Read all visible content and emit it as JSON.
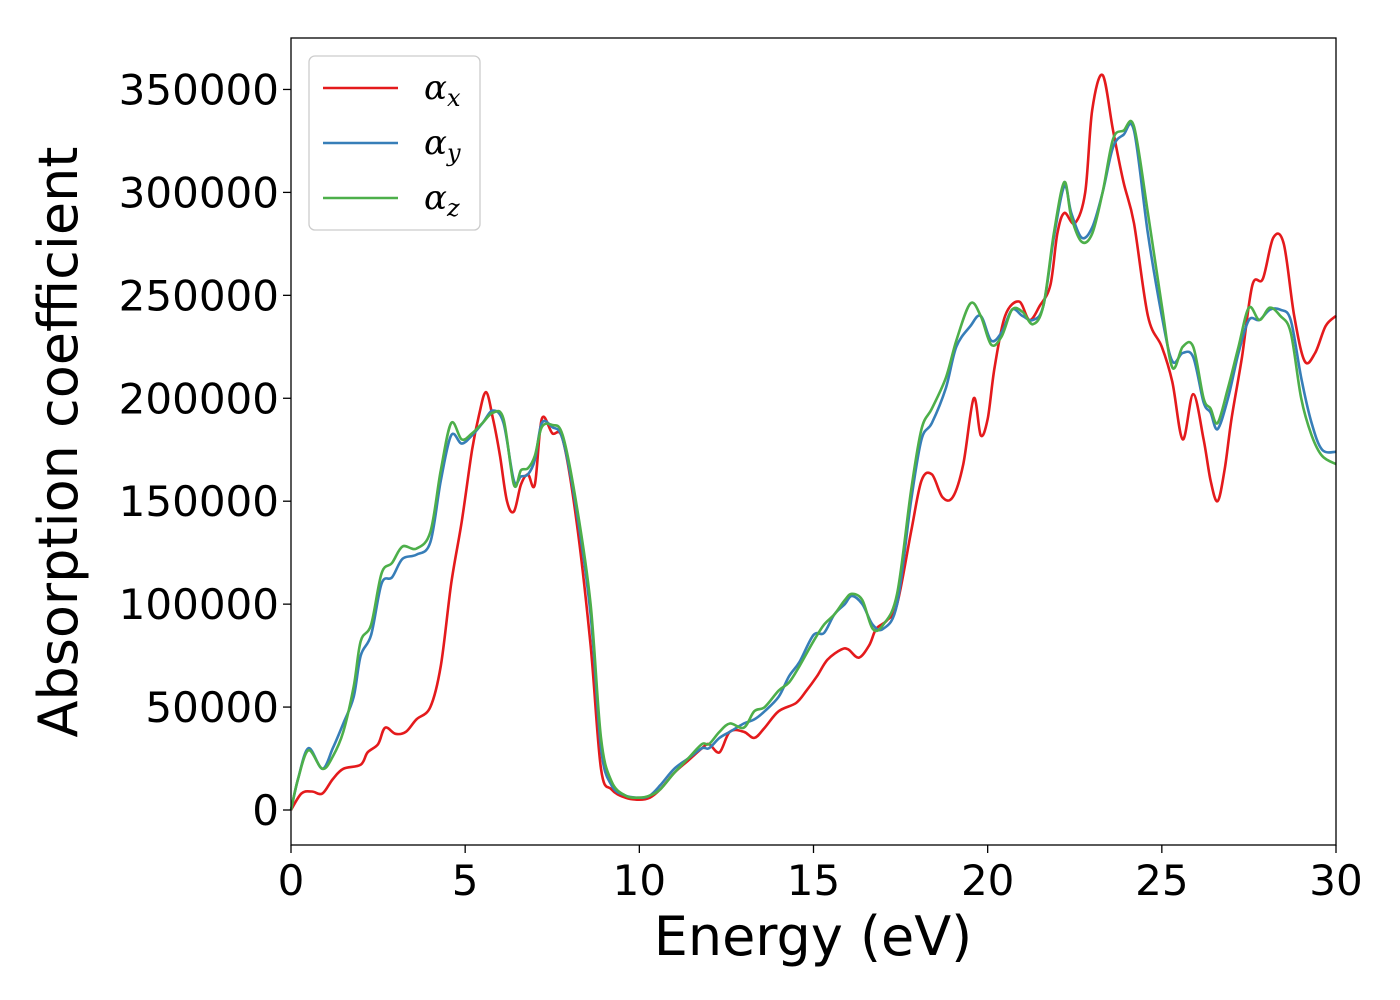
{
  "chart_data": {
    "type": "line",
    "title": "",
    "xlabel": "Energy (eV)",
    "ylabel": "Absorption coefficient",
    "xlim": [
      0,
      30
    ],
    "ylim": [
      -17000,
      375000
    ],
    "xticks": [
      0,
      5,
      10,
      15,
      20,
      25,
      30
    ],
    "yticks": [
      0,
      50000,
      100000,
      150000,
      200000,
      250000,
      300000,
      350000
    ],
    "grid": false,
    "legend_position": "top-left",
    "series": [
      {
        "name": "α",
        "subscript": "x",
        "color": "#e41a1c",
        "x": [
          0,
          0.3,
          0.6,
          0.9,
          1.2,
          1.5,
          2.0,
          2.2,
          2.5,
          2.7,
          3.0,
          3.3,
          3.6,
          4.0,
          4.3,
          4.6,
          4.9,
          5.2,
          5.4,
          5.6,
          5.8,
          6.0,
          6.2,
          6.4,
          6.6,
          6.8,
          7.0,
          7.2,
          7.5,
          7.8,
          8.2,
          8.6,
          8.9,
          9.2,
          9.6,
          10.0,
          10.3,
          10.6,
          11.0,
          11.4,
          11.8,
          12.0,
          12.3,
          12.6,
          13.0,
          13.3,
          13.6,
          14.0,
          14.5,
          14.8,
          15.1,
          15.4,
          15.8,
          16.0,
          16.3,
          16.6,
          16.8,
          17.1,
          17.4,
          17.8,
          18.1,
          18.4,
          18.7,
          19.0,
          19.3,
          19.6,
          19.8,
          20.0,
          20.2,
          20.5,
          20.9,
          21.2,
          21.5,
          21.8,
          22.0,
          22.2,
          22.5,
          22.8,
          23.0,
          23.3,
          23.6,
          23.9,
          24.2,
          24.6,
          25.0,
          25.3,
          25.6,
          25.9,
          26.2,
          26.4,
          26.6,
          26.8,
          27.0,
          27.3,
          27.6,
          27.9,
          28.2,
          28.5,
          28.8,
          29.1,
          29.4,
          29.7,
          30.0
        ],
        "values": [
          0,
          8000,
          9000,
          8000,
          15000,
          20000,
          22000,
          28000,
          32000,
          40000,
          37000,
          38000,
          44000,
          50000,
          70000,
          110000,
          140000,
          175000,
          192000,
          203000,
          190000,
          172000,
          150000,
          145000,
          158000,
          163000,
          158000,
          190000,
          183000,
          180000,
          140000,
          80000,
          20000,
          10000,
          6000,
          5000,
          6000,
          10000,
          18000,
          24000,
          30000,
          32000,
          28000,
          38000,
          38000,
          35000,
          40000,
          48000,
          52000,
          58000,
          65000,
          73000,
          78000,
          78000,
          74000,
          80000,
          88000,
          92000,
          100000,
          135000,
          160000,
          163000,
          152000,
          152000,
          168000,
          200000,
          182000,
          190000,
          215000,
          240000,
          247000,
          238000,
          245000,
          255000,
          280000,
          290000,
          285000,
          300000,
          340000,
          357000,
          330000,
          305000,
          285000,
          240000,
          225000,
          208000,
          180000,
          202000,
          180000,
          160000,
          150000,
          165000,
          190000,
          220000,
          255000,
          258000,
          278000,
          275000,
          240000,
          218000,
          222000,
          235000,
          240000
        ]
      },
      {
        "name": "α",
        "subscript": "y",
        "color": "#377eb8",
        "x": [
          0,
          0.2,
          0.5,
          0.9,
          1.2,
          1.5,
          1.8,
          2.0,
          2.3,
          2.6,
          2.9,
          3.2,
          3.6,
          4.0,
          4.3,
          4.6,
          4.9,
          5.2,
          5.5,
          5.8,
          6.1,
          6.4,
          6.6,
          6.8,
          7.0,
          7.2,
          7.5,
          7.8,
          8.2,
          8.6,
          8.9,
          9.2,
          9.6,
          10.0,
          10.3,
          10.6,
          11.0,
          11.4,
          11.8,
          12.0,
          12.3,
          12.6,
          13.0,
          13.3,
          13.6,
          14.0,
          14.3,
          14.6,
          15.0,
          15.3,
          15.6,
          15.9,
          16.1,
          16.4,
          16.7,
          17.0,
          17.4,
          17.8,
          18.1,
          18.4,
          18.8,
          19.1,
          19.5,
          19.8,
          20.1,
          20.4,
          20.7,
          21.0,
          21.3,
          21.6,
          21.9,
          22.2,
          22.4,
          22.7,
          23.0,
          23.3,
          23.6,
          23.9,
          24.2,
          24.6,
          25.0,
          25.3,
          25.6,
          25.9,
          26.2,
          26.4,
          26.6,
          26.9,
          27.2,
          27.5,
          27.8,
          28.1,
          28.4,
          28.7,
          29.0,
          29.3,
          29.6,
          30.0
        ],
        "values": [
          0,
          15000,
          30000,
          20000,
          30000,
          42000,
          55000,
          75000,
          85000,
          110000,
          113000,
          122000,
          124000,
          130000,
          160000,
          182000,
          178000,
          182000,
          188000,
          194000,
          188000,
          160000,
          162000,
          163000,
          170000,
          188000,
          186000,
          180000,
          145000,
          95000,
          30000,
          12000,
          7000,
          6000,
          7000,
          12000,
          20000,
          25000,
          30000,
          30000,
          35000,
          38000,
          42000,
          44000,
          48000,
          55000,
          65000,
          72000,
          85000,
          86000,
          95000,
          100000,
          104000,
          100000,
          90000,
          88000,
          100000,
          150000,
          180000,
          188000,
          205000,
          225000,
          235000,
          240000,
          228000,
          232000,
          243000,
          240000,
          238000,
          245000,
          278000,
          303000,
          290000,
          278000,
          283000,
          300000,
          322000,
          328000,
          330000,
          280000,
          240000,
          218000,
          222000,
          220000,
          198000,
          193000,
          185000,
          200000,
          222000,
          238000,
          238000,
          243000,
          243000,
          238000,
          210000,
          188000,
          175000,
          174000
        ]
      },
      {
        "name": "α",
        "subscript": "z",
        "color": "#4daf4a",
        "x": [
          0,
          0.2,
          0.5,
          0.9,
          1.2,
          1.5,
          1.8,
          2.0,
          2.3,
          2.6,
          2.9,
          3.2,
          3.6,
          4.0,
          4.3,
          4.6,
          4.9,
          5.2,
          5.5,
          5.8,
          6.1,
          6.4,
          6.6,
          6.8,
          7.0,
          7.2,
          7.5,
          7.8,
          8.2,
          8.6,
          8.9,
          9.2,
          9.6,
          10.0,
          10.3,
          10.6,
          11.0,
          11.4,
          11.8,
          12.0,
          12.3,
          12.6,
          13.0,
          13.3,
          13.6,
          14.0,
          14.3,
          14.6,
          15.0,
          15.3,
          15.6,
          15.9,
          16.1,
          16.4,
          16.7,
          17.0,
          17.4,
          17.8,
          18.1,
          18.4,
          18.8,
          19.1,
          19.5,
          19.8,
          20.1,
          20.4,
          20.7,
          21.0,
          21.3,
          21.6,
          21.9,
          22.2,
          22.4,
          22.7,
          23.0,
          23.3,
          23.6,
          23.9,
          24.2,
          24.6,
          25.0,
          25.3,
          25.6,
          25.9,
          26.2,
          26.4,
          26.6,
          26.9,
          27.2,
          27.5,
          27.8,
          28.1,
          28.4,
          28.7,
          29.0,
          29.3,
          29.6,
          30.0
        ],
        "values": [
          0,
          15000,
          29000,
          20000,
          26000,
          38000,
          60000,
          82000,
          90000,
          115000,
          120000,
          128000,
          127000,
          135000,
          165000,
          188000,
          180000,
          183000,
          188000,
          193000,
          190000,
          158000,
          165000,
          166000,
          172000,
          186000,
          187000,
          182000,
          148000,
          100000,
          35000,
          14000,
          7000,
          6000,
          7000,
          10000,
          18000,
          25000,
          32000,
          32000,
          38000,
          42000,
          40000,
          48000,
          50000,
          58000,
          62000,
          70000,
          82000,
          90000,
          95000,
          102000,
          105000,
          102000,
          88000,
          90000,
          105000,
          155000,
          185000,
          195000,
          210000,
          228000,
          246000,
          240000,
          226000,
          230000,
          243000,
          242000,
          236000,
          245000,
          280000,
          305000,
          288000,
          276000,
          280000,
          300000,
          326000,
          330000,
          332000,
          290000,
          245000,
          215000,
          225000,
          225000,
          200000,
          195000,
          188000,
          205000,
          225000,
          244000,
          238000,
          244000,
          240000,
          232000,
          200000,
          182000,
          172000,
          168000
        ]
      }
    ]
  }
}
